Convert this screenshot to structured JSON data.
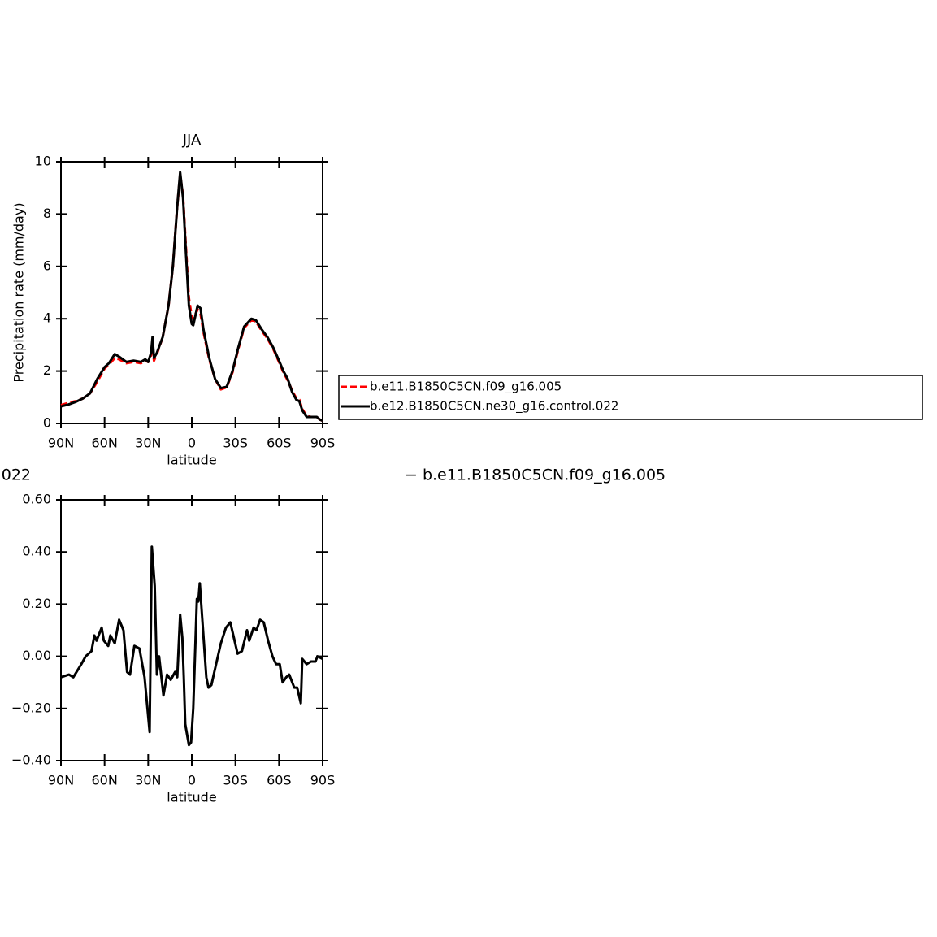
{
  "chart_data": [
    {
      "type": "line",
      "title": "JJA",
      "xlabel": "latitude",
      "ylabel": "Precipitation rate (mm/day)",
      "xlim": [
        90,
        -90
      ],
      "xticks": [
        {
          "value": 90,
          "label": "90N"
        },
        {
          "value": 60,
          "label": "60N"
        },
        {
          "value": 30,
          "label": "30N"
        },
        0,
        {
          "value": -30,
          "label": "30S"
        },
        {
          "value": -60,
          "label": "60S"
        },
        {
          "value": -90,
          "label": "90S"
        }
      ],
      "ylim": [
        0,
        10
      ],
      "yticks": [
        0,
        2,
        4,
        6,
        8,
        10
      ],
      "legend": "outside-right",
      "x": [
        90,
        85,
        80,
        75,
        70,
        65,
        60,
        57,
        53,
        50,
        45,
        40,
        35,
        32,
        30,
        28,
        27,
        26,
        24,
        20,
        16,
        13,
        10,
        8,
        6,
        4,
        2,
        0,
        -1,
        -4,
        -6,
        -8,
        -12,
        -16,
        -20,
        -24,
        -28,
        -32,
        -36,
        -41,
        -44,
        -48,
        -52,
        -56,
        -60,
        -63,
        -66,
        -69,
        -72,
        -74,
        -76,
        -79,
        -82,
        -86,
        -88,
        -90
      ],
      "series": [
        {
          "name": "b.e11.B1850C5CN.f09_g16.005",
          "color": "#ff0000",
          "dashed": true,
          "values": [
            0.7,
            0.78,
            0.85,
            0.95,
            1.15,
            1.6,
            2.1,
            2.25,
            2.5,
            2.45,
            2.3,
            2.35,
            2.3,
            2.4,
            2.35,
            2.6,
            2.9,
            2.4,
            2.65,
            3.3,
            4.5,
            6.0,
            8.3,
            9.5,
            8.7,
            6.7,
            4.8,
            4.05,
            4.0,
            4.35,
            4.2,
            3.5,
            2.45,
            1.7,
            1.3,
            1.38,
            1.95,
            2.85,
            3.65,
            3.95,
            3.9,
            3.55,
            3.25,
            2.85,
            2.35,
            1.95,
            1.65,
            1.25,
            0.95,
            0.9,
            0.55,
            0.28,
            0.25,
            0.25,
            0.15,
            0.1
          ]
        },
        {
          "name": "b.e12.B1850C5CN.ne30_g16.control.022",
          "color": "#000000",
          "dashed": false,
          "values": [
            0.65,
            0.72,
            0.82,
            0.95,
            1.15,
            1.7,
            2.15,
            2.3,
            2.65,
            2.55,
            2.35,
            2.4,
            2.35,
            2.45,
            2.35,
            2.7,
            3.3,
            2.5,
            2.7,
            3.3,
            4.5,
            6.0,
            8.3,
            9.6,
            8.6,
            6.5,
            4.5,
            3.8,
            3.75,
            4.5,
            4.4,
            3.6,
            2.5,
            1.7,
            1.35,
            1.4,
            2.0,
            2.9,
            3.7,
            4.0,
            3.95,
            3.6,
            3.3,
            2.9,
            2.4,
            2.0,
            1.7,
            1.2,
            0.9,
            0.85,
            0.5,
            0.25,
            0.25,
            0.25,
            0.15,
            0.1
          ]
        }
      ]
    },
    {
      "type": "line",
      "title": "022",
      "subtitle": "− b.e11.B1850C5CN.f09_g16.005",
      "xlabel": "latitude",
      "xlim": [
        90,
        -90
      ],
      "xticks": [
        {
          "value": 90,
          "label": "90N"
        },
        {
          "value": 60,
          "label": "60N"
        },
        {
          "value": 30,
          "label": "30N"
        },
        0,
        {
          "value": -30,
          "label": "30S"
        },
        {
          "value": -60,
          "label": "60S"
        },
        {
          "value": -90,
          "label": "90S"
        }
      ],
      "ylim": [
        -0.4,
        0.6
      ],
      "yticks": [
        {
          "value": -0.4,
          "label": "−0.40"
        },
        {
          "value": -0.2,
          "label": "−0.20"
        },
        {
          "value": 0,
          "label": "0.00"
        },
        {
          "value": 0.2,
          "label": "0.20"
        },
        {
          "value": 0.4,
          "label": "0.40"
        },
        {
          "value": 0.6,
          "label": "0.60"
        }
      ],
      "x": [
        90,
        84.5,
        81.5,
        76,
        73,
        69,
        67,
        65.5,
        62,
        60.5,
        57.5,
        56,
        53,
        50,
        47,
        44.5,
        42.5,
        39.5,
        36,
        32.5,
        29,
        27.5,
        25.5,
        24,
        22.5,
        19.5,
        17,
        14.5,
        11.5,
        10,
        8,
        6.5,
        5.5,
        4.5,
        2,
        0.5,
        -1,
        -3.5,
        -4.5,
        -5.5,
        -7.5,
        -10,
        -11.5,
        -13.5,
        -15.5,
        -20,
        -23.5,
        -26.5,
        -29,
        -31.5,
        -34.5,
        -38,
        -39.5,
        -42.5,
        -44.5,
        -47,
        -49.5,
        -52.5,
        -55.5,
        -58,
        -60.5,
        -62.5,
        -65,
        -67,
        -70.5,
        -72.5,
        -75,
        -76,
        -79,
        -82,
        -85,
        -86.5,
        -90
      ],
      "series": [
        {
          "color": "#000000",
          "values": [
            -0.08,
            -0.07,
            -0.08,
            -0.03,
            0.0,
            0.02,
            0.08,
            0.06,
            0.11,
            0.06,
            0.04,
            0.08,
            0.05,
            0.14,
            0.1,
            -0.06,
            -0.07,
            0.04,
            0.03,
            -0.08,
            -0.29,
            0.42,
            0.27,
            -0.07,
            0.0,
            -0.15,
            -0.07,
            -0.09,
            -0.06,
            -0.08,
            0.16,
            0.07,
            -0.08,
            -0.26,
            -0.34,
            -0.33,
            -0.2,
            0.22,
            0.21,
            0.28,
            0.12,
            -0.08,
            -0.12,
            -0.11,
            -0.06,
            0.05,
            0.11,
            0.13,
            0.07,
            0.01,
            0.02,
            0.1,
            0.06,
            0.11,
            0.1,
            0.14,
            0.13,
            0.06,
            0.0,
            -0.03,
            -0.03,
            -0.1,
            -0.08,
            -0.07,
            -0.12,
            -0.12,
            -0.18,
            -0.01,
            -0.03,
            -0.02,
            -0.02,
            0.0,
            -0.01
          ]
        }
      ]
    }
  ]
}
